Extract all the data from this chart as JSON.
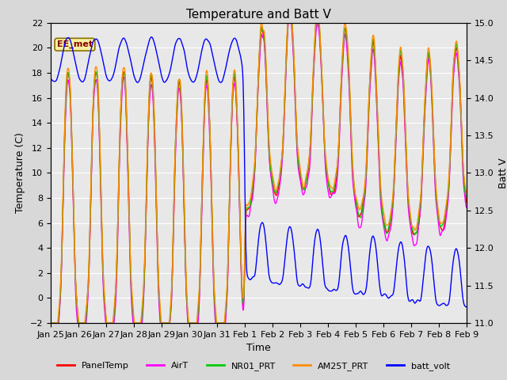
{
  "title": "Temperature and Batt V",
  "xlabel": "Time",
  "ylabel_left": "Temperature (C)",
  "ylabel_right": "Batt V",
  "ylim_left": [
    -2,
    22
  ],
  "ylim_right": [
    11.0,
    15.0
  ],
  "yticks_left": [
    -2,
    0,
    2,
    4,
    6,
    8,
    10,
    12,
    14,
    16,
    18,
    20,
    22
  ],
  "yticks_right": [
    11.0,
    11.5,
    12.0,
    12.5,
    13.0,
    13.5,
    14.0,
    14.5,
    15.0
  ],
  "xtick_labels": [
    "Jan 25",
    "Jan 26",
    "Jan 27",
    "Jan 28",
    "Jan 29",
    "Jan 30",
    "Jan 31",
    "Feb 1",
    "Feb 2",
    "Feb 3",
    "Feb 4",
    "Feb 5",
    "Feb 6",
    "Feb 7",
    "Feb 8",
    "Feb 9"
  ],
  "annotation_text": "EE_met",
  "colors": {
    "PanelTemp": "#FF0000",
    "AirT": "#FF00FF",
    "NR01_PRT": "#00CC00",
    "AM25T_PRT": "#FF8C00",
    "batt_volt": "#0000FF"
  },
  "lw": 1.0,
  "background_color": "#D8D8D8",
  "plot_bg_color": "#E8E8E8",
  "title_fontsize": 11,
  "axis_fontsize": 9,
  "tick_fontsize": 8,
  "legend_fontsize": 8
}
